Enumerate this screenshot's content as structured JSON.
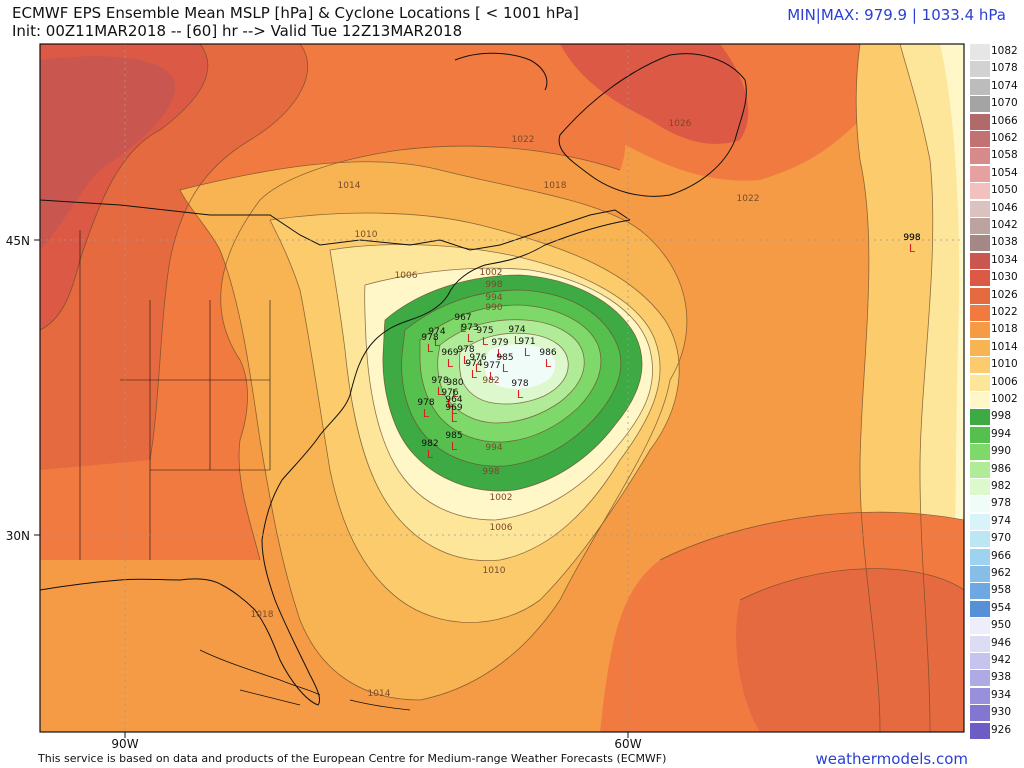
{
  "header": {
    "title_line1": "ECMWF EPS Ensemble Mean MSLP [hPa] & Cyclone Locations [ < 1001 hPa]",
    "title_line2": "Init: 00Z11MAR2018 -- [60] hr --> Valid Tue 12Z13MAR2018",
    "minmax": "MIN|MAX: 979.9 | 1033.4 hPa"
  },
  "footer": {
    "credit": "This service is based on data and products of the European Centre for Medium-range Weather Forecasts (ECMWF)",
    "brand": "weathermodels.com"
  },
  "axes": {
    "lat_labels": [
      "45N",
      "30N"
    ],
    "lon_labels": [
      "90W",
      "60W"
    ]
  },
  "colorbar": [
    {
      "label": "1082",
      "color": "#e6e6e6"
    },
    {
      "label": "1078",
      "color": "#d2d2d2"
    },
    {
      "label": "1074",
      "color": "#bcbcbc"
    },
    {
      "label": "1070",
      "color": "#a4a4a4"
    },
    {
      "label": "1066",
      "color": "#b06a6a"
    },
    {
      "label": "1062",
      "color": "#c27272"
    },
    {
      "label": "1058",
      "color": "#d68a8a"
    },
    {
      "label": "1054",
      "color": "#e6a0a0"
    },
    {
      "label": "1050",
      "color": "#f3c0c0"
    },
    {
      "label": "1046",
      "color": "#d9c2c0"
    },
    {
      "label": "1042",
      "color": "#bca3a0"
    },
    {
      "label": "1038",
      "color": "#a58885"
    },
    {
      "label": "1034",
      "color": "#c9574f"
    },
    {
      "label": "1030",
      "color": "#dc5a45"
    },
    {
      "label": "1026",
      "color": "#e66a40"
    },
    {
      "label": "1022",
      "color": "#f07a40"
    },
    {
      "label": "1018",
      "color": "#f59a45"
    },
    {
      "label": "1014",
      "color": "#f8b452"
    },
    {
      "label": "1010",
      "color": "#fbcb6c"
    },
    {
      "label": "1006",
      "color": "#fde59a"
    },
    {
      "label": "1002",
      "color": "#fff7c8"
    },
    {
      "label": "998",
      "color": "#3daa44"
    },
    {
      "label": "994",
      "color": "#55c04e"
    },
    {
      "label": "990",
      "color": "#7ed86a"
    },
    {
      "label": "986",
      "color": "#b0ec98"
    },
    {
      "label": "982",
      "color": "#dcf8cc"
    },
    {
      "label": "978",
      "color": "#f0fcf8"
    },
    {
      "label": "974",
      "color": "#d8f4fa"
    },
    {
      "label": "970",
      "color": "#bce6f4"
    },
    {
      "label": "966",
      "color": "#9fd2ee"
    },
    {
      "label": "962",
      "color": "#86bee8"
    },
    {
      "label": "958",
      "color": "#6ea8e2"
    },
    {
      "label": "954",
      "color": "#5890d8"
    },
    {
      "label": "950",
      "color": "#eeeefa"
    },
    {
      "label": "946",
      "color": "#dcdcf4"
    },
    {
      "label": "942",
      "color": "#c6c4ee"
    },
    {
      "label": "938",
      "color": "#aeaae4"
    },
    {
      "label": "934",
      "color": "#9890da"
    },
    {
      "label": "930",
      "color": "#8276d0"
    },
    {
      "label": "926",
      "color": "#6c5cc4"
    }
  ],
  "isobar_labels": [
    "1014",
    "1010",
    "1006",
    "1002",
    "998",
    "994",
    "990",
    "1022",
    "1018",
    "1026",
    "1022",
    "998",
    "982",
    "994",
    "998",
    "1002",
    "1006",
    "1010",
    "1018",
    "1014"
  ],
  "cyclone_labels": [
    "974",
    "978",
    "967",
    "973",
    "979",
    "975",
    "974",
    "971",
    "986",
    "969",
    "978",
    "985",
    "976",
    "974",
    "977",
    "978",
    "980",
    "978",
    "976",
    "964",
    "969",
    "978",
    "982",
    "985",
    "998"
  ]
}
